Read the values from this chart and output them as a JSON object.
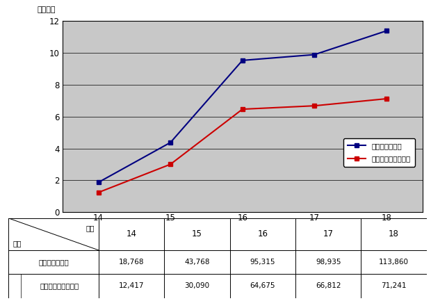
{
  "years": [
    14,
    15,
    16,
    17,
    18
  ],
  "kinyu_values": [
    1.8768,
    4.3768,
    9.5315,
    9.8935,
    11.386
  ],
  "keisatsu_values": [
    1.2417,
    3.009,
    6.4675,
    6.6812,
    7.1241
  ],
  "kinyu_color": "#000080",
  "keisatsu_color": "#cc0000",
  "plot_bg_color": "#c8c8c8",
  "fig_bg_color": "#ffffff",
  "ylabel": "（万件）",
  "ylim": [
    0,
    12
  ],
  "yticks": [
    0,
    2,
    4,
    6,
    8,
    10,
    12
  ],
  "legend_kinyu": "金融庁受理件数",
  "legend_keisatsu": "警察庁年間受理件数",
  "table_row1": "金融庁受理件数",
  "table_row2": "警察庁年間受理件数",
  "table_values_kinyu": [
    "18,768",
    "43,768",
    "95,315",
    "98,935",
    "113,860"
  ],
  "table_values_keisatsu": [
    "12,417",
    "30,090",
    "64,675",
    "66,812",
    "71,241"
  ],
  "header_nendo": "年次",
  "header_kubun": "区分"
}
